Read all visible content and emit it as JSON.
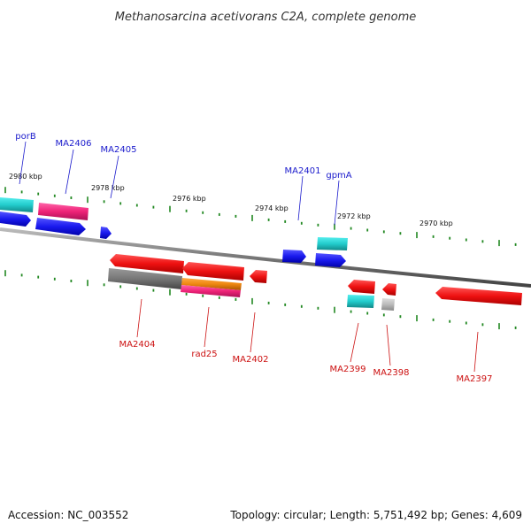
{
  "title": "Methanosarcina acetivorans C2A, complete genome",
  "footer": {
    "accession": "Accession: NC_003552",
    "topology": "Topology: circular; Length: 5,751,492 bp; Genes: 4,609"
  },
  "colors": {
    "forward_cds": "#1a1aee",
    "reverse_cds": "#ee1111",
    "cyan": "#22cccc",
    "magenta": "#ee2277",
    "gray": "#777777",
    "orange": "#ee8811",
    "tick": "#228822",
    "backbone": "#777777",
    "label_top": "#1a1acc",
    "label_bottom": "#cc1111"
  },
  "tick_labels": [
    "2980 kbp",
    "2978 kbp",
    "2976 kbp",
    "2974 kbp",
    "2972 kbp",
    "2970 kbp"
  ],
  "gene_labels_top": [
    "porB",
    "MA2406",
    "MA2405",
    "MA2401",
    "gpmA"
  ],
  "gene_labels_bottom": [
    "MA2404",
    "rad25",
    "MA2402",
    "MA2399",
    "MA2398",
    "MA2397"
  ]
}
